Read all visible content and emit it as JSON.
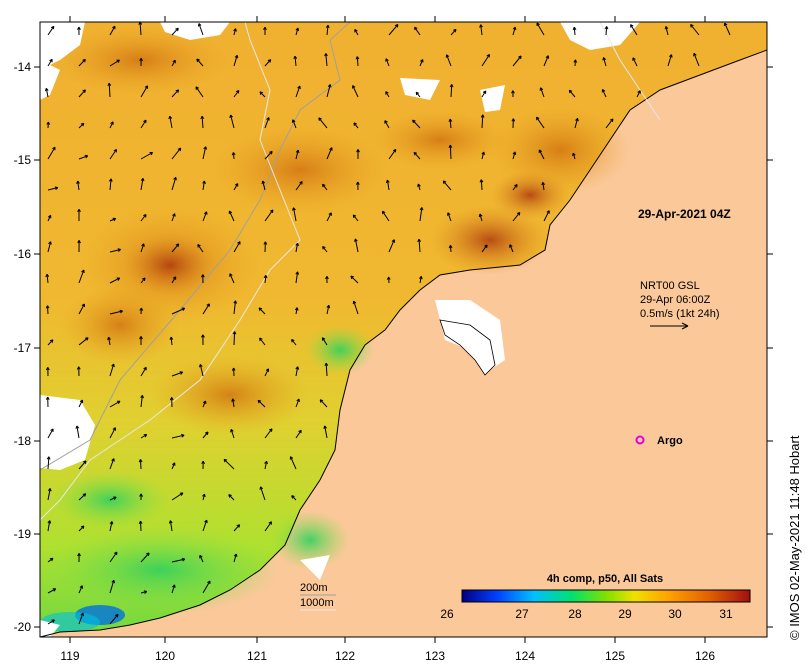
{
  "map": {
    "lon_ticks": [
      "119",
      "120",
      "121",
      "122",
      "123",
      "124",
      "125",
      "126"
    ],
    "lat_ticks": [
      "-14",
      "-15",
      "-16",
      "-17",
      "-18",
      "-19",
      "-20"
    ],
    "timestamp": "29-Apr-2021 04Z",
    "current_legend": {
      "line1": "NRT00 GSL",
      "line2": "29-Apr 06:00Z",
      "line3": "0.5m/s (1kt 24h)"
    },
    "argo_label": "Argo",
    "contour_legend": {
      "a": "200m",
      "b": "1000m"
    },
    "colorbar": {
      "title": "4h comp, p50, All Sats",
      "ticks": [
        "26",
        "27",
        "28",
        "29",
        "30",
        "31"
      ],
      "colors": [
        "#000080",
        "#0050ff",
        "#00c8ff",
        "#00e050",
        "#a0e000",
        "#ffe000",
        "#ffa000",
        "#e07000",
        "#a02000"
      ]
    },
    "credit": "© IMOS 02-May-2021 11:48 Hobart",
    "colors": {
      "land": "#fbc89a",
      "warm": "#e8a020",
      "hot": "#b04010",
      "mid": "#f0c030",
      "cool": "#b0e030",
      "cold": "#40d060",
      "argo": "#e000e0"
    }
  }
}
